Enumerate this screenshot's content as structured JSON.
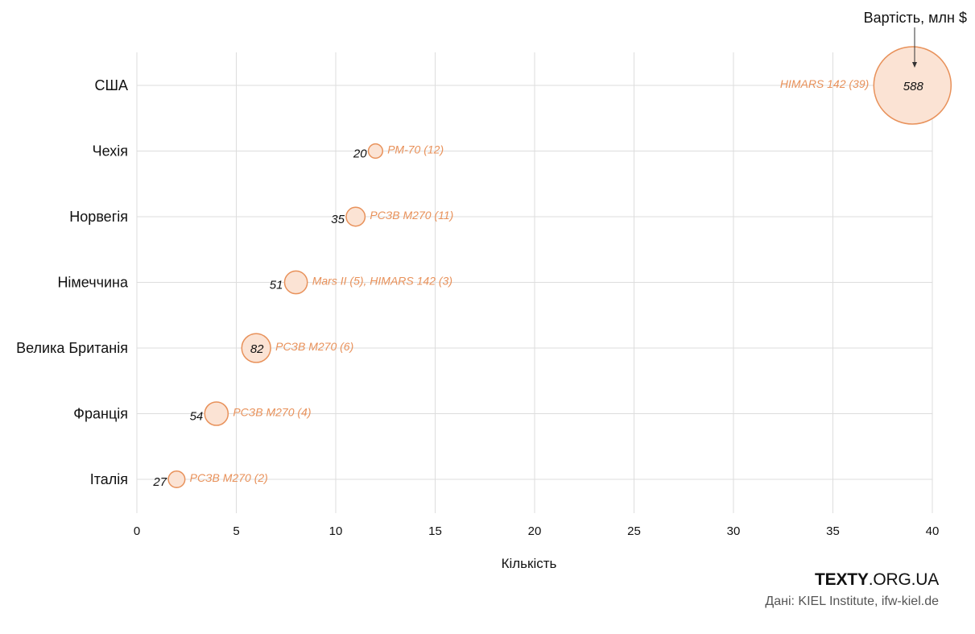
{
  "chart_data": {
    "type": "scatter",
    "xlabel": "Кількість",
    "xlim": [
      0,
      40
    ],
    "xticks": [
      0,
      5,
      10,
      15,
      20,
      25,
      30,
      35,
      40
    ],
    "size_legend": "Вартість, млн $",
    "grid": true,
    "colors": {
      "fill": "#fbe3d4",
      "stroke": "#e8915a",
      "grid": "#dddddd"
    },
    "points": [
      {
        "country": "США",
        "x": 39,
        "value": 588,
        "label": "HIMARS 142 (39)"
      },
      {
        "country": "Чехія",
        "x": 12,
        "value": 20,
        "label": "РМ-70 (12)"
      },
      {
        "country": "Норвегія",
        "x": 11,
        "value": 35,
        "label": "РСЗВ М270 (11)"
      },
      {
        "country": "Німеччина",
        "x": 8,
        "value": 51,
        "label": "Mars II (5), HIMARS 142 (3)"
      },
      {
        "country": "Велика Британія",
        "x": 6,
        "value": 82,
        "label": "РСЗВ М270 (6)"
      },
      {
        "country": "Франція",
        "x": 4,
        "value": 54,
        "label": "РСЗВ М270 (4)"
      },
      {
        "country": "Італія",
        "x": 2,
        "value": 27,
        "label": "РСЗВ М270 (2)"
      }
    ]
  },
  "footer": {
    "brand_bold": "TEXTY",
    "brand_rest": ".ORG.UA",
    "source": "Дані: KIEL Institute, ifw-kiel.de"
  }
}
